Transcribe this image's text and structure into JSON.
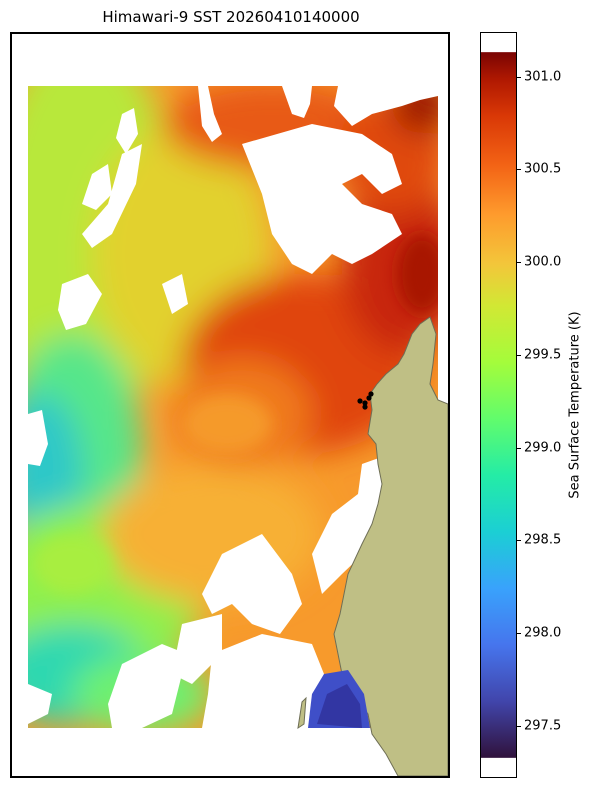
{
  "title": "Himawari-9 SST 20260410140000",
  "colorbar": {
    "label": "Sea Surface Temperature (K)",
    "min": 297.22,
    "max": 301.24,
    "ticks": [
      "297.5",
      "298.0",
      "298.5",
      "299.0",
      "299.5",
      "300.0",
      "300.5",
      "301.0"
    ]
  },
  "colors": {
    "land": "#bfbf85",
    "coast": "#6e6e55",
    "marker": "#000000"
  }
}
